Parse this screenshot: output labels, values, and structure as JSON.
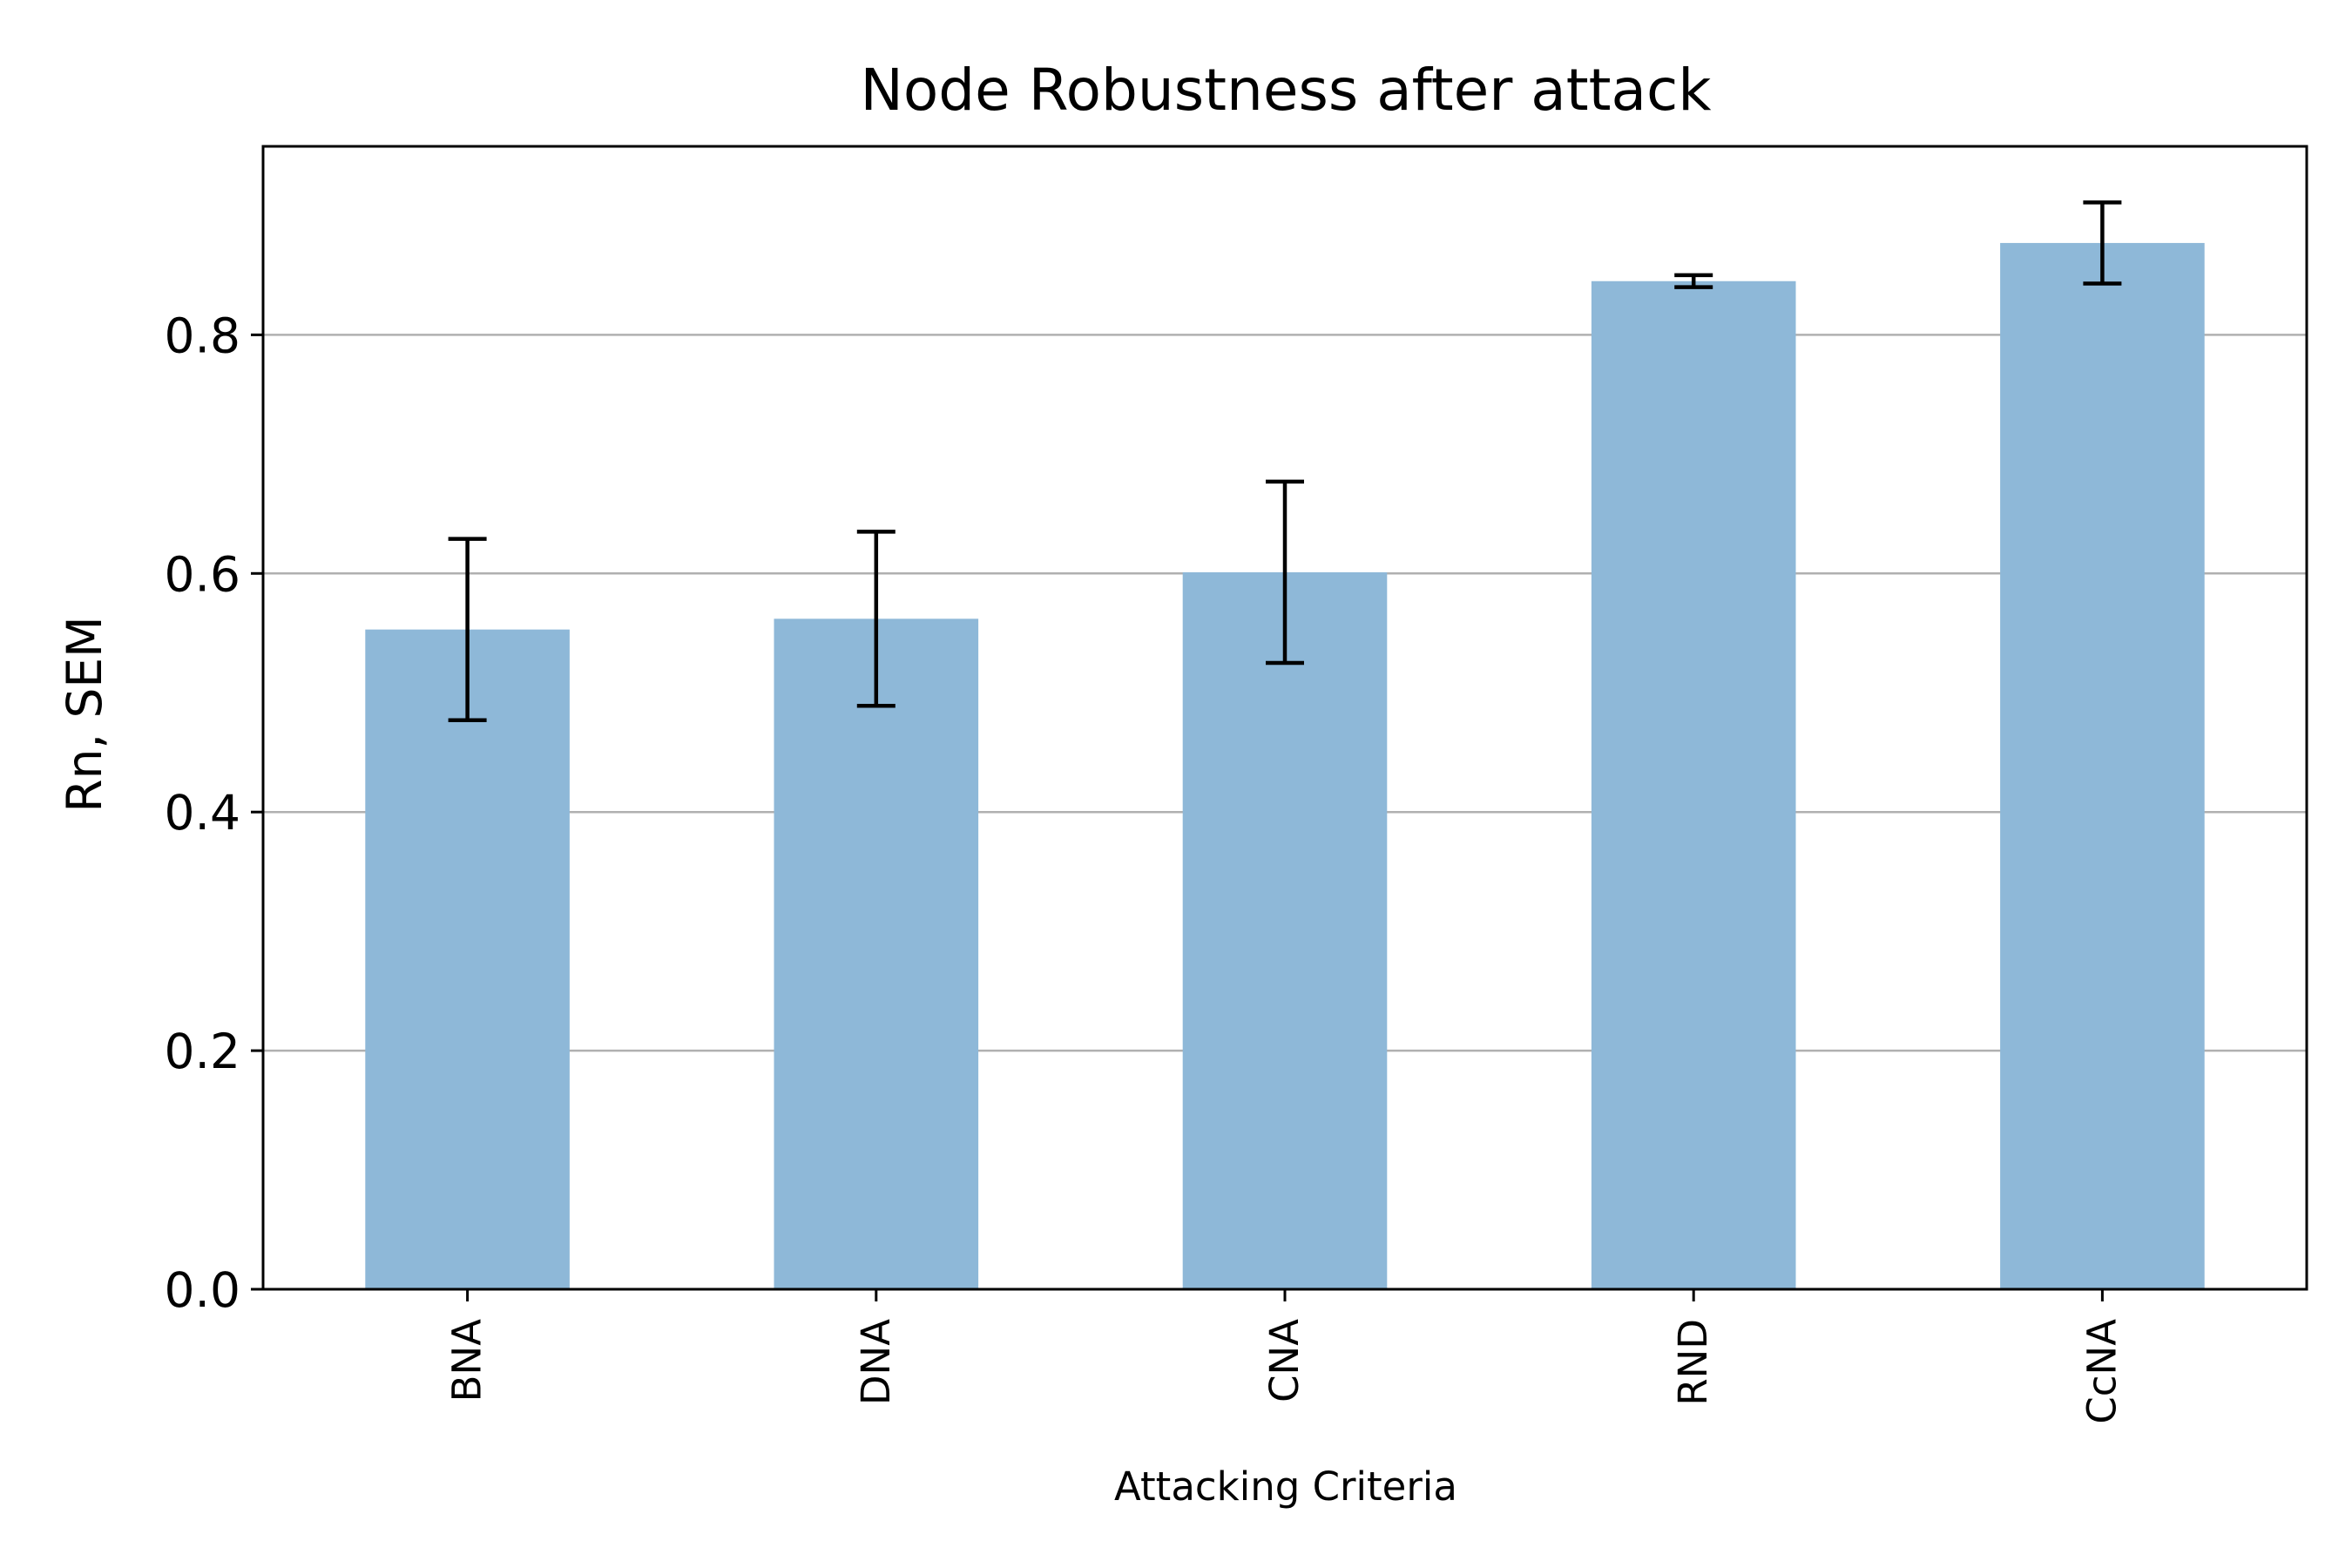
{
  "chart_data": {
    "type": "bar",
    "title": "Node Robustness after attack",
    "xlabel": "Attacking Criteria",
    "ylabel": "Rn, SEM",
    "categories": [
      "BNA",
      "DNA",
      "CNA",
      "RND",
      "CcNA"
    ],
    "values": [
      0.553,
      0.562,
      0.601,
      0.845,
      0.877
    ],
    "errors": [
      0.076,
      0.073,
      0.076,
      0.005,
      0.034
    ],
    "ylim": [
      0,
      0.958
    ],
    "yticks": [
      0.0,
      0.2,
      0.4,
      0.6,
      0.8
    ],
    "ytick_labels": [
      "0.0",
      "0.2",
      "0.4",
      "0.6",
      "0.8"
    ],
    "grid": "y",
    "bar_color": "#8eb8d8",
    "error_color": "#000000",
    "grid_color": "#b0b0b0"
  }
}
